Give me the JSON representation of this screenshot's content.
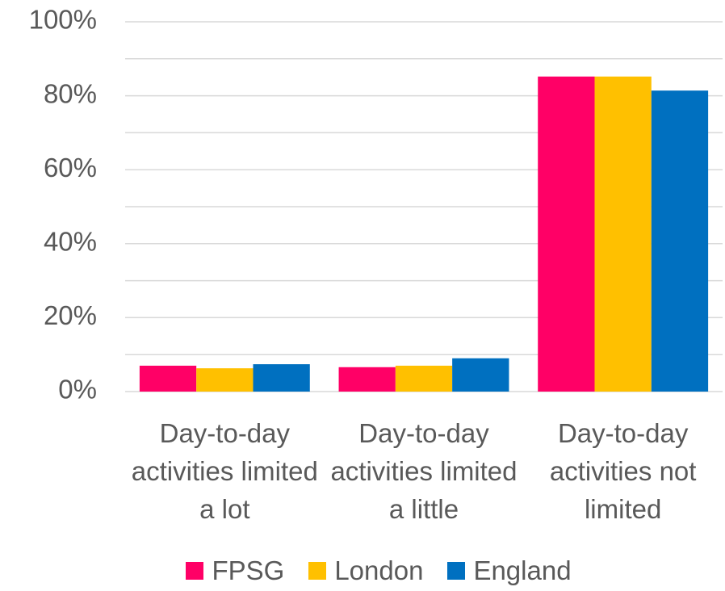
{
  "chart_data": {
    "type": "bar",
    "categories": [
      "Day-to-day activities limited a lot",
      "Day-to-day activities limited a little",
      "Day-to-day activities not limited"
    ],
    "series": [
      {
        "name": "FPSG",
        "color": "#ff0066",
        "values": [
          7.0,
          6.6,
          85.2
        ]
      },
      {
        "name": "London",
        "color": "#ffc000",
        "values": [
          6.3,
          7.0,
          85.2
        ]
      },
      {
        "name": "England",
        "color": "#0070c0",
        "values": [
          7.4,
          9.0,
          81.4
        ]
      }
    ],
    "ylim": [
      0,
      100
    ],
    "yticks": [
      {
        "value": 0,
        "label": "0%"
      },
      {
        "value": 20,
        "label": "20%"
      },
      {
        "value": 40,
        "label": "40%"
      },
      {
        "value": 60,
        "label": "60%"
      },
      {
        "value": 80,
        "label": "80%"
      },
      {
        "value": 100,
        "label": "100%"
      }
    ],
    "y_minor_ticks": [
      10,
      30,
      50,
      70,
      90
    ],
    "grid": true,
    "legend": "bottom"
  }
}
